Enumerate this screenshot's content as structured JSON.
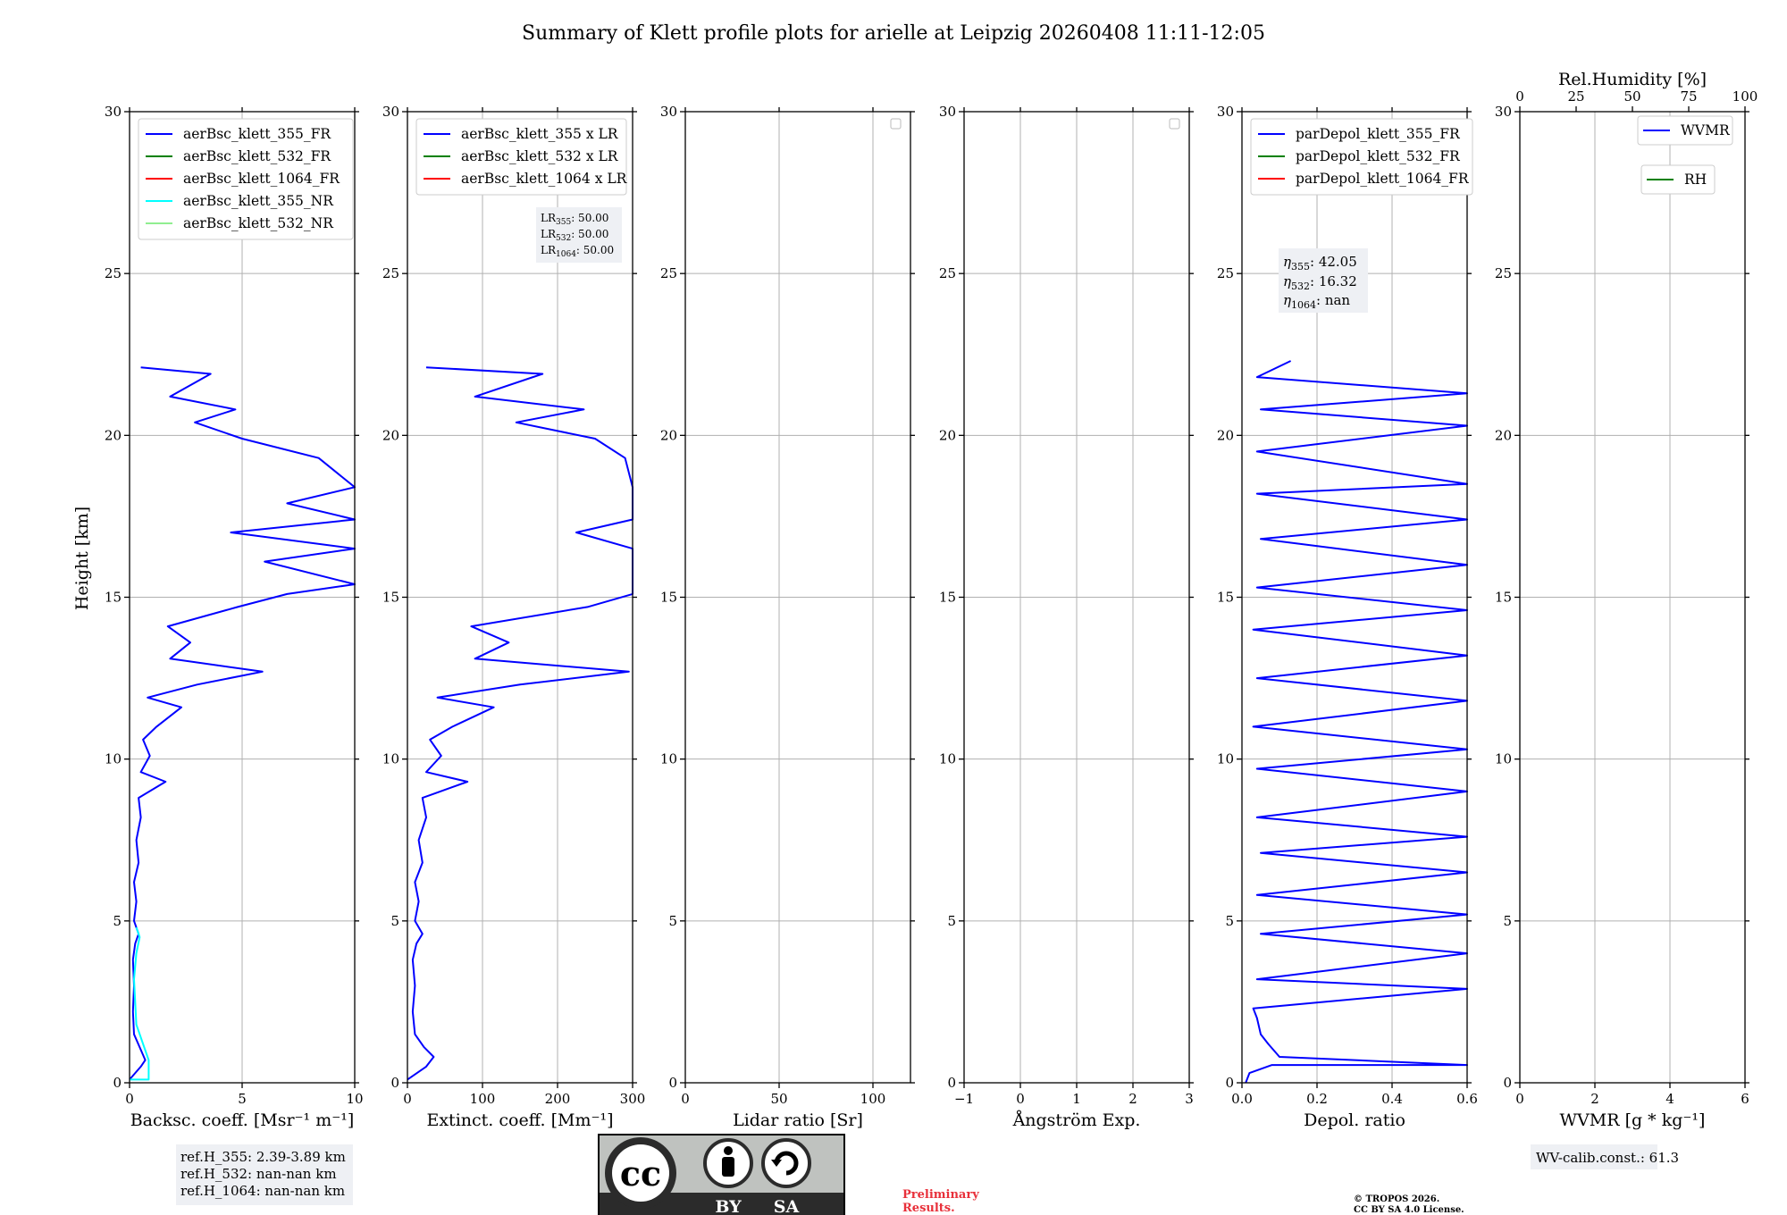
{
  "title": "Summary of Klett profile plots for arielle at Leipzig 20260408 11:11-12:05",
  "y_axis": {
    "label": "Height [km]",
    "range": [
      0,
      30
    ],
    "ticks": [
      "0",
      "5",
      "10",
      "15",
      "20",
      "25",
      "30"
    ]
  },
  "colors": {
    "blue": "#0000ff",
    "green": "#008000",
    "red": "#ff0000",
    "cyan": "#00ffff",
    "lightgreen": "#90ee90",
    "grid": "#b0b0b0",
    "box_bg": "#eef0f4",
    "preliminary": "#e8303a"
  },
  "chart_data": [
    {
      "type": "line",
      "name": "backscatter",
      "xlabel": "Backsc. coeff. [Msr⁻¹ m⁻¹]",
      "xlim": [
        0,
        10
      ],
      "xticks": [
        0,
        5,
        10
      ],
      "xtick_labels": [
        "0",
        "5",
        "10"
      ],
      "legend": [
        "aerBsc_klett_355_FR",
        "aerBsc_klett_532_FR",
        "aerBsc_klett_1064_FR",
        "aerBsc_klett_355_NR",
        "aerBsc_klett_532_NR"
      ],
      "legend_colors": [
        "#0000ff",
        "#008000",
        "#ff0000",
        "#00ffff",
        "#90ee90"
      ],
      "series": [
        {
          "name": "aerBsc_klett_355_FR",
          "color": "#0000ff",
          "values": [
            [
              0,
              0.1
            ],
            [
              0.5,
              0.5
            ],
            [
              0.7,
              0.7
            ],
            [
              0.45,
              1.1
            ],
            [
              0.2,
              1.5
            ],
            [
              0.15,
              2.2
            ],
            [
              0.2,
              3
            ],
            [
              0.15,
              3.8
            ],
            [
              0.25,
              4.3
            ],
            [
              0.4,
              4.6
            ],
            [
              0.2,
              5
            ],
            [
              0.3,
              5.6
            ],
            [
              0.2,
              6.2
            ],
            [
              0.4,
              6.8
            ],
            [
              0.3,
              7.5
            ],
            [
              0.5,
              8.2
            ],
            [
              0.4,
              8.8
            ],
            [
              1.6,
              9.3
            ],
            [
              0.5,
              9.6
            ],
            [
              0.9,
              10.1
            ],
            [
              0.6,
              10.6
            ],
            [
              1.2,
              11
            ],
            [
              2.3,
              11.6
            ],
            [
              0.8,
              11.9
            ],
            [
              3.0,
              12.3
            ],
            [
              5.9,
              12.7
            ],
            [
              1.8,
              13.1
            ],
            [
              2.7,
              13.6
            ],
            [
              1.7,
              14.1
            ],
            [
              4.8,
              14.7
            ],
            [
              7,
              15.1
            ],
            [
              10,
              15.4
            ],
            [
              6,
              16.1
            ],
            [
              10,
              16.5
            ],
            [
              4.5,
              17.0
            ],
            [
              10,
              17.4
            ],
            [
              7,
              17.9
            ],
            [
              10,
              18.4
            ],
            [
              8.4,
              19.3
            ],
            [
              5.0,
              19.9
            ],
            [
              2.9,
              20.4
            ],
            [
              4.7,
              20.8
            ],
            [
              1.8,
              21.2
            ],
            [
              3.6,
              21.9
            ],
            [
              0.5,
              22.1
            ]
          ]
        },
        {
          "name": "aerBsc_klett_355_NR",
          "color": "#00ffff",
          "values": [
            [
              0,
              0.1
            ],
            [
              0.85,
              0.1
            ],
            [
              0.85,
              0.7
            ],
            [
              0.6,
              1.2
            ],
            [
              0.3,
              1.8
            ],
            [
              0.25,
              2.5
            ],
            [
              0.2,
              3.2
            ],
            [
              0.3,
              4
            ],
            [
              0.45,
              4.5
            ],
            [
              0.3,
              4.8
            ]
          ]
        }
      ],
      "text_box": [
        "ref.H_355: 2.39-3.89 km",
        "ref.H_532: nan-nan km",
        "ref.H_1064: nan-nan km"
      ]
    },
    {
      "type": "line",
      "name": "extinction",
      "xlabel": "Extinct. coeff. [Mm⁻¹]",
      "xlim": [
        0,
        300
      ],
      "xticks": [
        0,
        100,
        200,
        300
      ],
      "xtick_labels": [
        "0",
        "100",
        "200",
        "300"
      ],
      "legend": [
        "aerBsc_klett_355 x LR",
        "aerBsc_klett_532 x LR",
        "aerBsc_klett_1064 x LR"
      ],
      "legend_colors": [
        "#0000ff",
        "#008000",
        "#ff0000"
      ],
      "lidar_ratios": [
        {
          "label": "LR",
          "sub": "355",
          "value": ": 50.00"
        },
        {
          "label": "LR",
          "sub": "532",
          "value": ": 50.00"
        },
        {
          "label": "LR",
          "sub": "1064",
          "value": ": 50.00"
        }
      ],
      "series": [
        {
          "name": "aerBsc_klett_355 x LR",
          "color": "#0000ff",
          "values": [
            [
              0,
              0.1
            ],
            [
              25,
              0.5
            ],
            [
              35,
              0.8
            ],
            [
              22,
              1.1
            ],
            [
              10,
              1.5
            ],
            [
              7,
              2.2
            ],
            [
              10,
              3
            ],
            [
              7,
              3.8
            ],
            [
              12,
              4.3
            ],
            [
              20,
              4.6
            ],
            [
              10,
              5
            ],
            [
              15,
              5.6
            ],
            [
              10,
              6.2
            ],
            [
              20,
              6.8
            ],
            [
              15,
              7.5
            ],
            [
              25,
              8.2
            ],
            [
              20,
              8.8
            ],
            [
              80,
              9.3
            ],
            [
              25,
              9.6
            ],
            [
              45,
              10.1
            ],
            [
              30,
              10.6
            ],
            [
              60,
              11
            ],
            [
              115,
              11.6
            ],
            [
              40,
              11.9
            ],
            [
              150,
              12.3
            ],
            [
              295,
              12.7
            ],
            [
              90,
              13.1
            ],
            [
              135,
              13.6
            ],
            [
              85,
              14.1
            ],
            [
              240,
              14.7
            ],
            [
              300,
              15.1
            ],
            [
              300,
              15.4
            ],
            [
              300,
              16.1
            ],
            [
              300,
              16.5
            ],
            [
              225,
              17.0
            ],
            [
              300,
              17.4
            ],
            [
              300,
              17.9
            ],
            [
              300,
              18.4
            ],
            [
              290,
              19.3
            ],
            [
              250,
              19.9
            ],
            [
              145,
              20.4
            ],
            [
              235,
              20.8
            ],
            [
              90,
              21.2
            ],
            [
              180,
              21.9
            ],
            [
              25,
              22.1
            ]
          ]
        }
      ]
    },
    {
      "type": "line",
      "name": "lidar_ratio",
      "xlabel": "Lidar ratio [Sr]",
      "xlim": [
        0,
        120
      ],
      "xticks": [
        0,
        50,
        100
      ],
      "xtick_labels": [
        "0",
        "50",
        "100"
      ],
      "series": []
    },
    {
      "type": "line",
      "name": "angstrom",
      "xlabel": "Ångström Exp.",
      "xlim": [
        -1,
        3
      ],
      "xticks": [
        -1,
        0,
        1,
        2,
        3
      ],
      "xtick_labels": [
        "−1",
        "0",
        "1",
        "2",
        "3"
      ],
      "series": []
    },
    {
      "type": "line",
      "name": "depolarization",
      "xlabel": "Depol. ratio",
      "xlim": [
        0,
        0.6
      ],
      "xticks": [
        0,
        0.2,
        0.4,
        0.6
      ],
      "xtick_labels": [
        "0.0",
        "0.2",
        "0.4",
        "0.6"
      ],
      "legend": [
        "parDepol_klett_355_FR",
        "parDepol_klett_532_FR",
        "parDepol_klett_1064_FR"
      ],
      "legend_colors": [
        "#0000ff",
        "#008000",
        "#ff0000"
      ],
      "eta": [
        {
          "label": "η",
          "sub": "355",
          "value": ": 42.05"
        },
        {
          "label": "η",
          "sub": "532",
          "value": ": 16.32"
        },
        {
          "label": "η",
          "sub": "1064",
          "value": ": nan"
        }
      ],
      "series": [
        {
          "name": "parDepol_klett_355_FR",
          "color": "#0000ff",
          "values": [
            [
              0.01,
              0
            ],
            [
              0.02,
              0.3
            ],
            [
              0.08,
              0.55
            ],
            [
              0.6,
              0.55
            ],
            [
              0.1,
              0.8
            ],
            [
              0.07,
              1.2
            ],
            [
              0.05,
              1.5
            ],
            [
              0.04,
              2
            ],
            [
              0.03,
              2.3
            ],
            [
              0.6,
              2.9
            ],
            [
              0.04,
              3.2
            ],
            [
              0.6,
              4
            ],
            [
              0.05,
              4.6
            ],
            [
              0.6,
              5.2
            ],
            [
              0.04,
              5.8
            ],
            [
              0.6,
              6.5
            ],
            [
              0.05,
              7.1
            ],
            [
              0.6,
              7.6
            ],
            [
              0.04,
              8.2
            ],
            [
              0.6,
              9
            ],
            [
              0.04,
              9.7
            ],
            [
              0.6,
              10.3
            ],
            [
              0.03,
              11
            ],
            [
              0.6,
              11.8
            ],
            [
              0.04,
              12.5
            ],
            [
              0.6,
              13.2
            ],
            [
              0.03,
              14
            ],
            [
              0.6,
              14.6
            ],
            [
              0.04,
              15.3
            ],
            [
              0.6,
              16
            ],
            [
              0.05,
              16.8
            ],
            [
              0.6,
              17.4
            ],
            [
              0.04,
              18.2
            ],
            [
              0.6,
              18.5
            ],
            [
              0.04,
              19.5
            ],
            [
              0.6,
              20.3
            ],
            [
              0.05,
              20.8
            ],
            [
              0.6,
              21.3
            ],
            [
              0.04,
              21.8
            ],
            [
              0.13,
              22.3
            ]
          ]
        }
      ]
    },
    {
      "type": "line",
      "name": "water_vapor",
      "xlabel": "WVMR [g * kg⁻¹]",
      "xlim": [
        0,
        6
      ],
      "xticks": [
        0,
        2,
        4,
        6
      ],
      "xtick_labels": [
        "0",
        "2",
        "4",
        "6"
      ],
      "top_axis": {
        "label": "Rel.Humidity [%]",
        "range": [
          0,
          100
        ],
        "ticks": [
          "0",
          "25",
          "50",
          "75",
          "100"
        ]
      },
      "legend": [
        "WVMR",
        "RH"
      ],
      "legend_colors": [
        "#0000ff",
        "#008000"
      ],
      "text_box": [
        "WV-calib.const.: 61.3"
      ],
      "series": []
    }
  ],
  "footer": {
    "license_logo": {
      "cc": "cc",
      "by": "BY",
      "sa": "SA"
    },
    "preliminary": [
      "Preliminary",
      "Results."
    ],
    "copyright": [
      "© TROPOS 2026.",
      "CC BY SA 4.0 License."
    ]
  }
}
